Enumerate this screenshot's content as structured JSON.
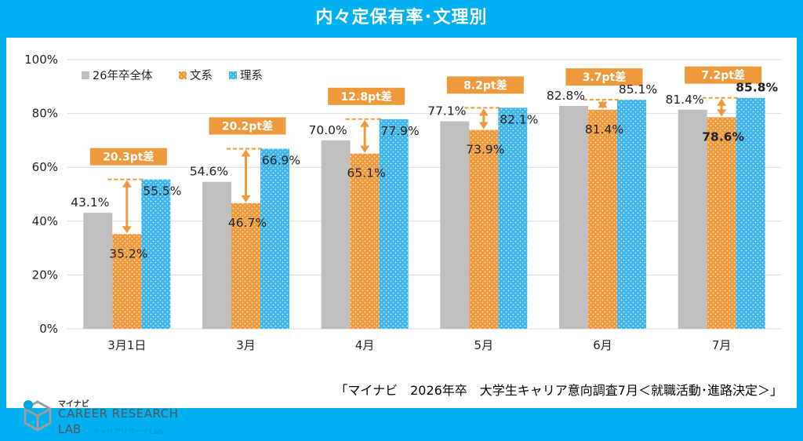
{
  "header": {
    "title": "内々定保有率･文理別"
  },
  "footer": {
    "source": "「マイナビ　2026年卒　大学生キャリア意向調査7月＜就職活動･進路決定＞」",
    "logo_top": "マイナビ",
    "logo_main": "CAREER RESEARCH",
    "logo_sub": "LAB",
    "logo_sub2": "キャリアリサーチLab"
  },
  "colors": {
    "overall": "#bfbfbf",
    "bunkei": "#f0a040",
    "rikei": "#45b8ec",
    "diff_box": "#ee9a3c",
    "frame": "#00b0f0"
  },
  "chart_data": {
    "type": "bar",
    "title": "内々定保有率･文理別",
    "categories": [
      "3月1日",
      "3月",
      "4月",
      "5月",
      "6月",
      "7月"
    ],
    "series": [
      {
        "name": "26年卒全体",
        "values": [
          43.1,
          54.6,
          70.0,
          77.1,
          82.8,
          81.4
        ],
        "labels": [
          "43.1%",
          "54.6%",
          "70.0%",
          "77.1%",
          "82.8%",
          "81.4%"
        ]
      },
      {
        "name": "文系",
        "values": [
          35.2,
          46.7,
          65.1,
          73.9,
          81.4,
          78.6
        ],
        "labels": [
          "35.2%",
          "46.7%",
          "65.1%",
          "73.9%",
          "81.4%",
          "78.6%"
        ]
      },
      {
        "name": "理系",
        "values": [
          55.5,
          66.9,
          77.9,
          82.1,
          85.1,
          85.8
        ],
        "labels": [
          "55.5%",
          "66.9%",
          "77.9%",
          "82.1%",
          "85.1%",
          "85.8%"
        ]
      }
    ],
    "differences": [
      "20.3pt差",
      "20.2pt差",
      "12.8pt差",
      "8.2pt差",
      "3.7pt差",
      "7.2pt差"
    ],
    "ylim": [
      0,
      100
    ],
    "yticks": [
      0,
      20,
      40,
      60,
      80,
      100
    ],
    "ytick_labels": [
      "0%",
      "20%",
      "40%",
      "60%",
      "80%",
      "100%"
    ],
    "legend": [
      "26年卒全体",
      "文系",
      "理系"
    ],
    "legend_position": "top-left",
    "xlabel": "",
    "ylabel": ""
  }
}
